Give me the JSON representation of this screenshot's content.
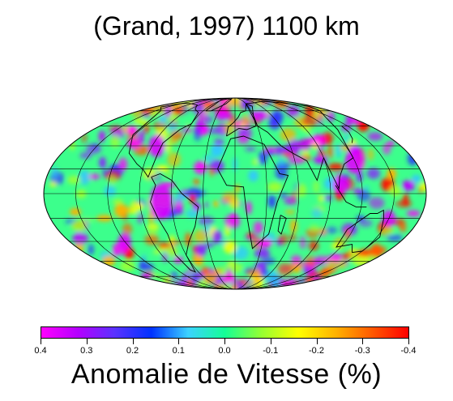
{
  "title": "(Grand, 1997) 1100 km",
  "colorbar": {
    "title": "Anomalie de Vitesse  (%)",
    "tick_labels": [
      "0.4",
      "0.3",
      "0.2",
      "0.1",
      "0.0",
      "-0.1",
      "-0.2",
      "-0.3",
      "-0.4"
    ],
    "range": [
      0.4,
      -0.4
    ],
    "colors": [
      "#ff00ff",
      "#b400ff",
      "#5a32ff",
      "#0032ff",
      "#3cd2ff",
      "#14ff96",
      "#96ff32",
      "#ffff00",
      "#ffb400",
      "#ff5a00",
      "#ff0000"
    ]
  },
  "map": {
    "projection": "Mollweide",
    "background": "#14ff96",
    "graticule": true,
    "coastlines": true
  }
}
